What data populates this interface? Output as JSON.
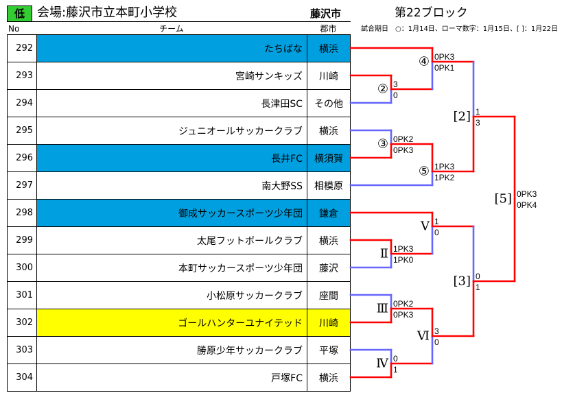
{
  "header": {
    "level_badge": "低",
    "venue": "会場:藤沢市立本町小学校",
    "city": "藤沢市",
    "block": "第22ブロック",
    "schedule_note": "試合期日　○：1月14日、ローマ数字：1月15日、[ ]：1月22日"
  },
  "columns": {
    "no": "No",
    "team": "チーム",
    "city": "郡市"
  },
  "colors": {
    "badge": "#33cc33",
    "highlight_blue": "#00a0e0",
    "highlight_yellow": "#ffff00",
    "win_line": "#ff0000",
    "lose_line": "#6666ff"
  },
  "teams": [
    {
      "no": "292",
      "name": "たちばな",
      "city": "横浜",
      "highlight": "blue"
    },
    {
      "no": "293",
      "name": "宮崎サンキッズ",
      "city": "川崎",
      "highlight": ""
    },
    {
      "no": "294",
      "name": "長津田SC",
      "city": "その他",
      "highlight": ""
    },
    {
      "no": "295",
      "name": "ジュニオールサッカークラブ",
      "city": "横浜",
      "highlight": ""
    },
    {
      "no": "296",
      "name": "長井FC",
      "city": "横須賀",
      "highlight": "blue"
    },
    {
      "no": "297",
      "name": "南大野SS",
      "city": "相模原",
      "highlight": ""
    },
    {
      "no": "298",
      "name": "御成サッカースポーツ少年団",
      "city": "鎌倉",
      "highlight": "blue"
    },
    {
      "no": "299",
      "name": "太尾フットボールクラブ",
      "city": "横浜",
      "highlight": ""
    },
    {
      "no": "300",
      "name": "本町サッカースポーツ少年団",
      "city": "藤沢",
      "highlight": ""
    },
    {
      "no": "301",
      "name": "小松原サッカークラブ",
      "city": "座間",
      "highlight": ""
    },
    {
      "no": "302",
      "name": "ゴールハンターユナイテッド",
      "city": "川崎",
      "highlight": "yellow"
    },
    {
      "no": "303",
      "name": "勝原少年サッカークラブ",
      "city": "平塚",
      "highlight": ""
    },
    {
      "no": "304",
      "name": "戸塚FC",
      "city": "横浜",
      "highlight": ""
    }
  ],
  "matches": [
    {
      "label": "②",
      "scores": [
        "3",
        "0"
      ]
    },
    {
      "label": "③",
      "scores": [
        "0PK2",
        "0PK3"
      ]
    },
    {
      "label": "Ⅱ",
      "scores": [
        "1PK3",
        "1PK0"
      ]
    },
    {
      "label": "Ⅲ",
      "scores": [
        "0PK2",
        "0PK3"
      ]
    },
    {
      "label": "Ⅳ",
      "scores": [
        "0",
        "1"
      ]
    },
    {
      "label": "④",
      "scores": [
        "0PK3",
        "0PK1"
      ]
    },
    {
      "label": "⑤",
      "scores": [
        "1PK3",
        "1PK2"
      ]
    },
    {
      "label": "Ⅴ",
      "scores": [
        "1",
        "0"
      ]
    },
    {
      "label": "Ⅵ",
      "scores": [
        "3",
        "0"
      ]
    },
    {
      "label": "[2]",
      "scores": [
        "1",
        "3"
      ]
    },
    {
      "label": "[3]",
      "scores": [
        "0",
        "1"
      ]
    },
    {
      "label": "[5]",
      "scores": [
        "0PK3",
        "0PK4"
      ]
    }
  ]
}
